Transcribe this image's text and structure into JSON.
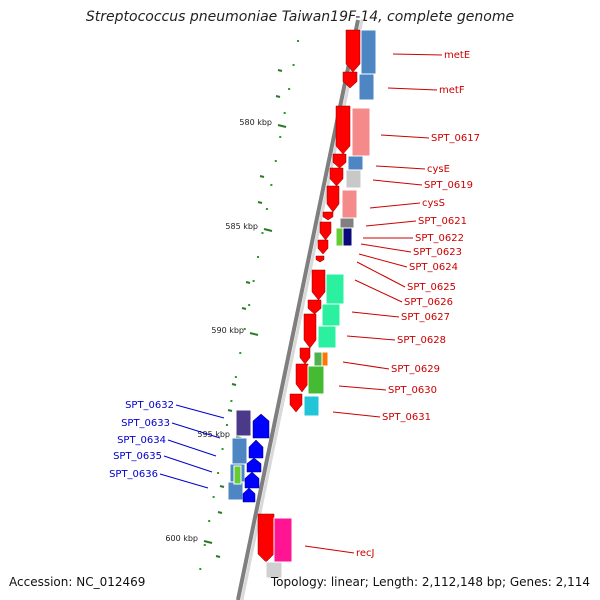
{
  "title": "Streptococcus pneumoniae Taiwan19F-14, complete genome",
  "accession": "Accession: NC_012469",
  "summary": "Topology: linear; Length: 2,112,148 bp; Genes: 2,114",
  "colors": {
    "forward_label": "#cc0000",
    "reverse_label": "#0000cc",
    "tick": "#2a7a2a",
    "backbone": "#999999"
  },
  "scale": {
    "kbp_labels": [
      "580 kbp",
      "585 kbp",
      "590 kbp",
      "595 kbp",
      "600 kbp"
    ]
  },
  "genes": [
    {
      "name": "metE",
      "strand": "forward"
    },
    {
      "name": "metF",
      "strand": "forward"
    },
    {
      "name": "SPT_0617",
      "strand": "forward"
    },
    {
      "name": "cysE",
      "strand": "forward"
    },
    {
      "name": "SPT_0619",
      "strand": "forward"
    },
    {
      "name": "cysS",
      "strand": "forward"
    },
    {
      "name": "SPT_0621",
      "strand": "forward"
    },
    {
      "name": "SPT_0622",
      "strand": "forward"
    },
    {
      "name": "SPT_0623",
      "strand": "forward"
    },
    {
      "name": "SPT_0624",
      "strand": "forward"
    },
    {
      "name": "SPT_0625",
      "strand": "forward"
    },
    {
      "name": "SPT_0626",
      "strand": "forward"
    },
    {
      "name": "SPT_0627",
      "strand": "forward"
    },
    {
      "name": "SPT_0628",
      "strand": "forward"
    },
    {
      "name": "SPT_0629",
      "strand": "forward"
    },
    {
      "name": "SPT_0630",
      "strand": "forward"
    },
    {
      "name": "SPT_0631",
      "strand": "forward"
    },
    {
      "name": "SPT_0632",
      "strand": "reverse"
    },
    {
      "name": "SPT_0633",
      "strand": "reverse"
    },
    {
      "name": "SPT_0634",
      "strand": "reverse"
    },
    {
      "name": "SPT_0635",
      "strand": "reverse"
    },
    {
      "name": "SPT_0636",
      "strand": "reverse"
    },
    {
      "name": "recJ",
      "strand": "forward"
    }
  ]
}
